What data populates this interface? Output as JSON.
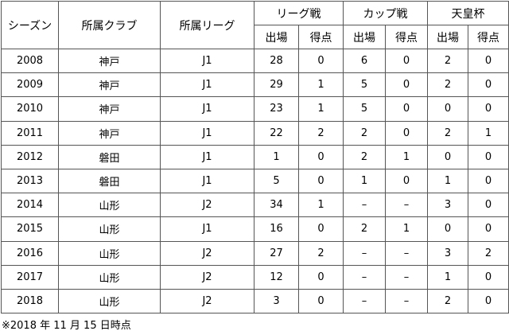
{
  "table": {
    "header": {
      "season": "シーズン",
      "club": "所属クラブ",
      "league": "所属リーグ",
      "groups": [
        "リーグ戦",
        "カップ戦",
        "天皇杯"
      ],
      "subheaders": [
        "出場",
        "得点",
        "出場",
        "得点",
        "出場",
        "得点"
      ]
    },
    "rows": [
      [
        "2008",
        "神戸",
        "J1",
        "28",
        "0",
        "6",
        "0",
        "2",
        "0"
      ],
      [
        "2009",
        "神戸",
        "J1",
        "29",
        "1",
        "5",
        "0",
        "2",
        "0"
      ],
      [
        "2010",
        "神戸",
        "J1",
        "23",
        "1",
        "5",
        "0",
        "0",
        "0"
      ],
      [
        "2011",
        "神戸",
        "J1",
        "22",
        "2",
        "2",
        "0",
        "2",
        "1"
      ],
      [
        "2012",
        "磐田",
        "J1",
        "1",
        "0",
        "2",
        "1",
        "0",
        "0"
      ],
      [
        "2013",
        "磐田",
        "J1",
        "5",
        "0",
        "1",
        "0",
        "1",
        "0"
      ],
      [
        "2014",
        "山形",
        "J2",
        "34",
        "1",
        "–",
        "–",
        "3",
        "0"
      ],
      [
        "2015",
        "山形",
        "J1",
        "16",
        "0",
        "2",
        "1",
        "0",
        "0"
      ],
      [
        "2016",
        "山形",
        "J2",
        "27",
        "2",
        "–",
        "–",
        "3",
        "2"
      ],
      [
        "2017",
        "山形",
        "J2",
        "12",
        "0",
        "–",
        "–",
        "1",
        "0"
      ],
      [
        "2018",
        "山形",
        "J2",
        "3",
        "0",
        "–",
        "–",
        "2",
        "0"
      ]
    ]
  },
  "footnote": "※2018 年 11 月 15 日時点"
}
